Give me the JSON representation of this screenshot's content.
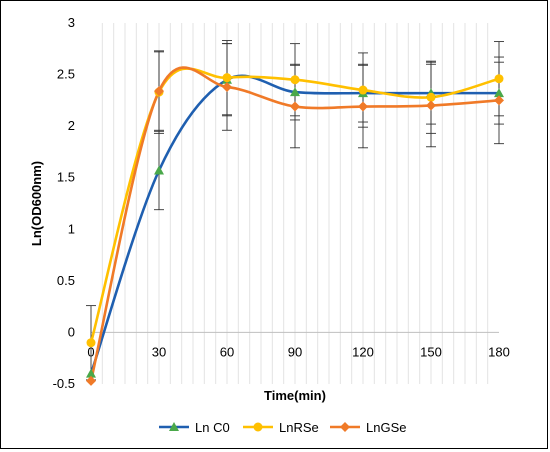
{
  "chart_data": {
    "type": "line",
    "title": "",
    "xlabel": "Time(min)",
    "ylabel": "Ln(OD600nm)",
    "x": [
      0,
      30,
      60,
      90,
      120,
      150,
      180
    ],
    "x_tick_labels": [
      "0",
      "30",
      "60",
      "90",
      "120",
      "150",
      "180"
    ],
    "xlim": [
      0,
      180
    ],
    "ylim": [
      -0.5,
      3
    ],
    "y_ticks": [
      -0.5,
      0,
      0.5,
      1,
      1.5,
      2,
      2.5,
      3
    ],
    "y_tick_labels": [
      "-0.5",
      "0",
      "0.5",
      "1",
      "1.5",
      "2",
      "2.5",
      "3"
    ],
    "grid": "vertical minor gridlines",
    "legend_position": "bottom",
    "smooth": true,
    "series": [
      {
        "name": "Ln C0",
        "color": "#1f5fb0",
        "marker": "triangle",
        "marker_color": "#4aa84a",
        "values": [
          -0.4,
          1.57,
          2.45,
          2.33,
          2.32,
          2.32,
          2.32
        ],
        "error": [
          0,
          0.38,
          0.35,
          0.27,
          0.28,
          0.3,
          0.3
        ]
      },
      {
        "name": "LnRSe",
        "color": "#ffc000",
        "marker": "circle",
        "marker_color": "#ffc000",
        "values": [
          -0.1,
          2.33,
          2.47,
          2.45,
          2.35,
          2.28,
          2.46
        ],
        "error": [
          0.36,
          0.4,
          0.36,
          0.35,
          0.36,
          0.35,
          0.36
        ]
      },
      {
        "name": "LnGSe",
        "color": "#f07a28",
        "marker": "diamond",
        "marker_color": "#f07a28",
        "values": [
          -0.47,
          2.34,
          2.38,
          2.19,
          2.19,
          2.2,
          2.25
        ],
        "error": [
          0,
          0.38,
          0.42,
          0.4,
          0.4,
          0.4,
          0.42
        ]
      }
    ]
  }
}
